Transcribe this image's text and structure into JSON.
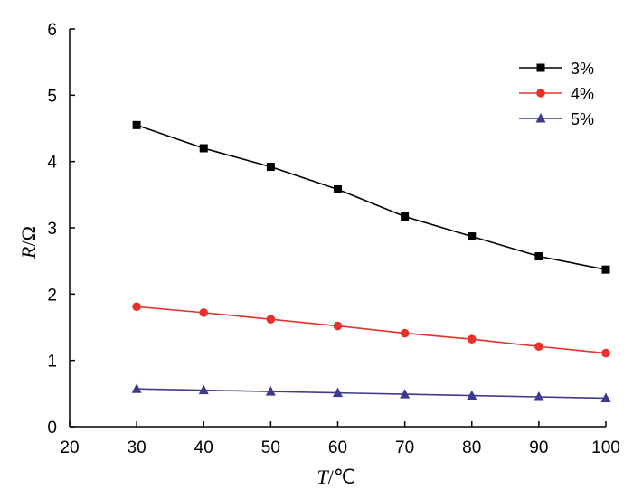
{
  "chart_data": {
    "type": "line",
    "title": "",
    "xlabel_var": "T",
    "xlabel_unit": "/℃",
    "ylabel_var": "R",
    "ylabel_unit": "/Ω",
    "x": [
      30,
      40,
      50,
      60,
      70,
      80,
      90,
      100
    ],
    "xlim": [
      20,
      100
    ],
    "ylim": [
      0,
      6
    ],
    "xticks": [
      "20",
      "30",
      "40",
      "50",
      "60",
      "70",
      "80",
      "90",
      "100"
    ],
    "yticks": [
      "0",
      "1",
      "2",
      "3",
      "4",
      "5",
      "6"
    ],
    "grid": false,
    "legend_position": "top-right",
    "series": [
      {
        "name": "3%",
        "color": "#000000",
        "marker": "square",
        "values": [
          4.55,
          4.2,
          3.92,
          3.58,
          3.17,
          2.87,
          2.57,
          2.37
        ]
      },
      {
        "name": "4%",
        "color": "#e8302c",
        "marker": "circle",
        "values": [
          1.81,
          1.72,
          1.62,
          1.52,
          1.41,
          1.32,
          1.21,
          1.11
        ]
      },
      {
        "name": "5%",
        "color": "#3c3a8c",
        "marker": "triangle",
        "values": [
          0.57,
          0.55,
          0.53,
          0.51,
          0.49,
          0.47,
          0.45,
          0.43
        ]
      }
    ]
  }
}
